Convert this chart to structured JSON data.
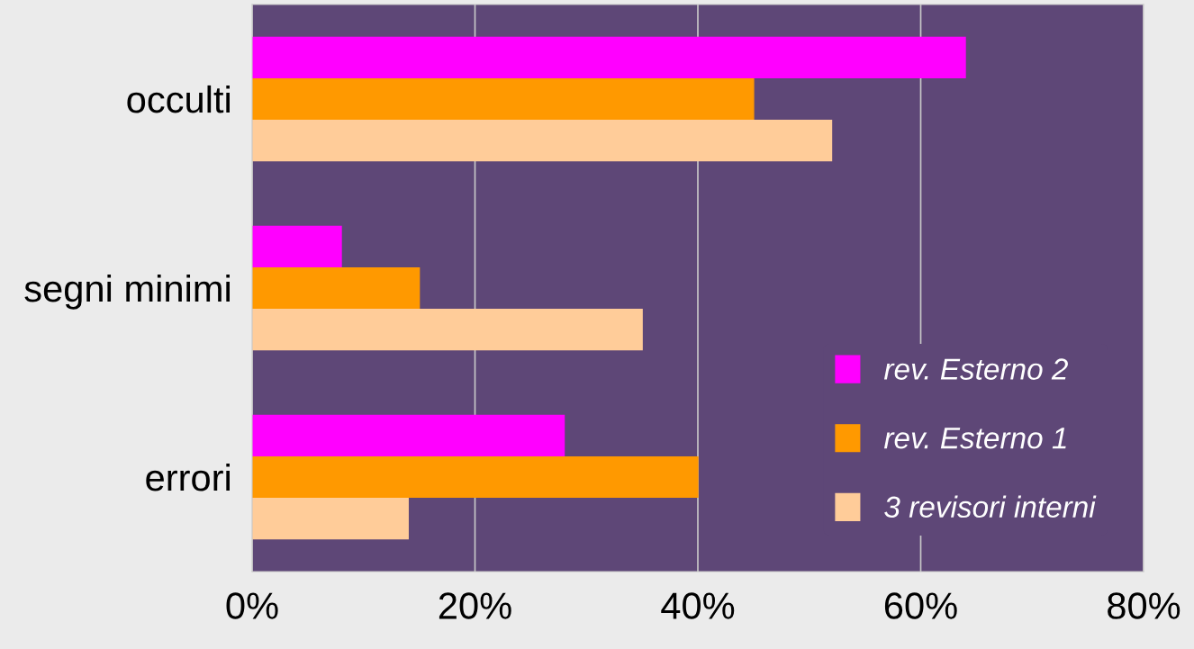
{
  "chart_data": {
    "type": "bar",
    "orientation": "horizontal",
    "categories": [
      "occulti",
      "segni minimi",
      "errori"
    ],
    "series": [
      {
        "name": "rev. Esterno 2",
        "color": "#ff00ff",
        "values": [
          64,
          8,
          28
        ]
      },
      {
        "name": "rev. Esterno 1",
        "color": "#ff9900",
        "values": [
          45,
          15,
          40
        ]
      },
      {
        "name": "3 revisori interni",
        "color": "#ffcc99",
        "values": [
          52,
          35,
          14
        ]
      }
    ],
    "xlim": [
      0,
      80
    ],
    "xticks": [
      {
        "value": 0,
        "label": "0%"
      },
      {
        "value": 20,
        "label": "20%"
      },
      {
        "value": 40,
        "label": "40%"
      },
      {
        "value": 60,
        "label": "60%"
      },
      {
        "value": 80,
        "label": "80%"
      }
    ],
    "grid": "x",
    "legend": "bottom right"
  }
}
